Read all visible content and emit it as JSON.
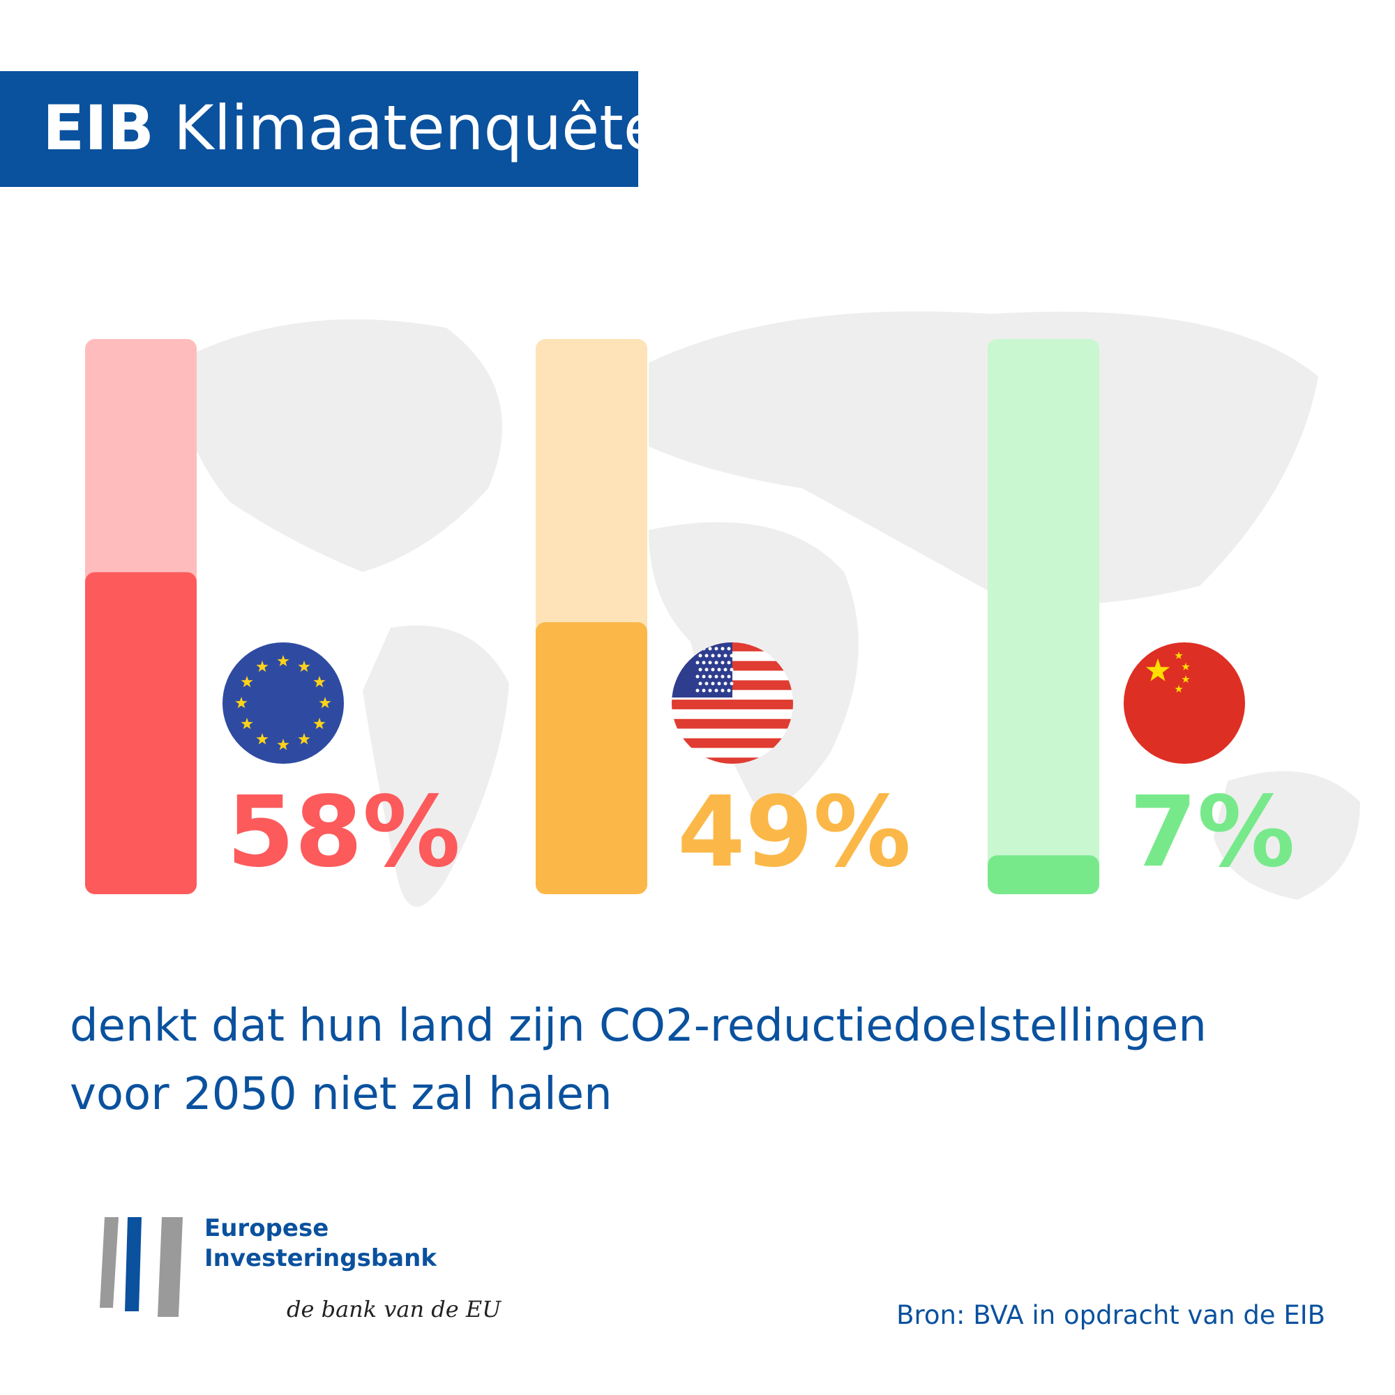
{
  "header": {
    "brand": "EIB",
    "title": "Klimaatenquête"
  },
  "chart_data": {
    "type": "bar",
    "values": [
      58,
      49,
      7
    ],
    "value_labels": [
      "58%",
      "49%",
      "7%"
    ],
    "colors": [
      "#fd5a5c",
      "#fbb848",
      "#78e98b"
    ],
    "track_colors": [
      "#ffbcbd",
      "#fde3b7",
      "#c8f7d0"
    ],
    "ylim": [
      0,
      100
    ]
  },
  "caption": [
    "denkt dat hun land zijn CO2-reductiedoelstellingen",
    "voor 2050 niet zal halen"
  ],
  "logo": {
    "name": [
      "Europese",
      "Investeringsbank"
    ],
    "tagline": "de bank van de EU"
  },
  "source": "Bron: BVA in opdracht van de EIB"
}
